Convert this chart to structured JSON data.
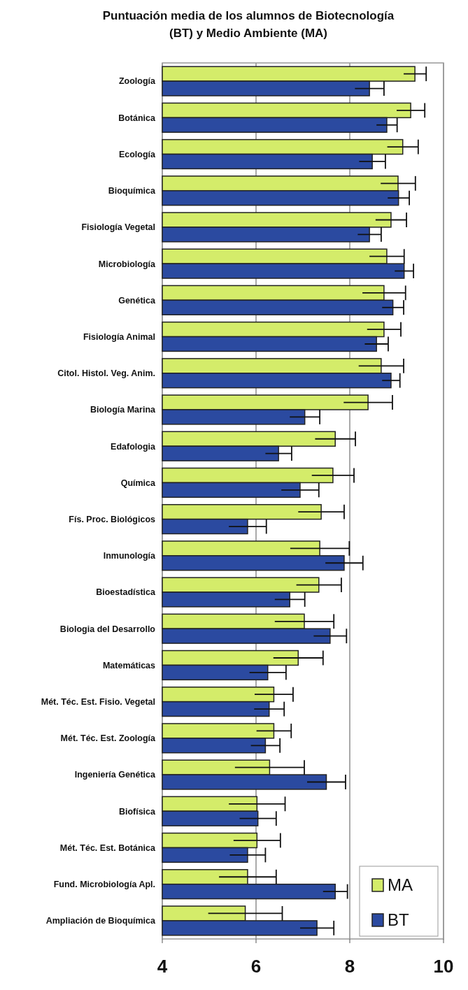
{
  "chart_data": {
    "type": "bar",
    "orientation": "horizontal",
    "title": "Puntuación media de los alumnos de Biotecnología\n(BT) y Medio Ambiente (MA)",
    "categories": [
      "Zoología",
      "Botánica",
      "Ecología",
      "Bioquímica",
      "Fisiología Vegetal",
      "Microbiología",
      "Genética",
      "Fisiología Animal",
      "Citol. Histol. Veg. Anim.",
      "Biología Marina",
      "Edafologia",
      "Química",
      "Fís. Proc. Biológicos",
      "Inmunología",
      "Bioestadística",
      "Biologia del Desarrollo",
      "Matemáticas",
      "Mét. Téc. Est. Fisio. Vegetal",
      "Mét. Téc. Est. Zoología",
      "Ingeniería Genética",
      "Biofísica",
      "Mét. Téc. Est. Botánica",
      "Fund. Microbiología Apl.",
      "Ampliación de Bioquímica"
    ],
    "series": [
      {
        "name": "MA",
        "color": "#d4ec6a",
        "values": [
          9.39,
          9.3,
          9.13,
          9.03,
          8.88,
          8.79,
          8.73,
          8.73,
          8.67,
          8.39,
          7.69,
          7.64,
          7.39,
          7.36,
          7.34,
          7.03,
          6.9,
          6.38,
          6.38,
          6.29,
          6.02,
          6.02,
          5.82,
          5.77
        ],
        "errors": [
          0.24,
          0.3,
          0.33,
          0.37,
          0.33,
          0.37,
          0.46,
          0.36,
          0.48,
          0.52,
          0.43,
          0.45,
          0.49,
          0.63,
          0.48,
          0.63,
          0.53,
          0.41,
          0.37,
          0.74,
          0.6,
          0.5,
          0.61,
          0.79
        ]
      },
      {
        "name": "BT",
        "color": "#2b4aa0",
        "values": [
          8.42,
          8.79,
          8.48,
          9.04,
          8.42,
          9.16,
          8.92,
          8.57,
          8.88,
          7.04,
          6.48,
          6.94,
          5.82,
          7.88,
          6.72,
          7.58,
          6.25,
          6.28,
          6.2,
          7.5,
          6.04,
          5.82,
          7.69,
          7.3
        ],
        "errors": [
          0.31,
          0.22,
          0.28,
          0.23,
          0.25,
          0.2,
          0.23,
          0.25,
          0.19,
          0.32,
          0.28,
          0.4,
          0.4,
          0.4,
          0.32,
          0.35,
          0.39,
          0.32,
          0.31,
          0.41,
          0.39,
          0.38,
          0.26,
          0.36
        ]
      }
    ],
    "xlim": [
      4,
      10
    ],
    "xticks": [
      4,
      6,
      8,
      10
    ],
    "grid": "x",
    "legend": "bottom right"
  }
}
